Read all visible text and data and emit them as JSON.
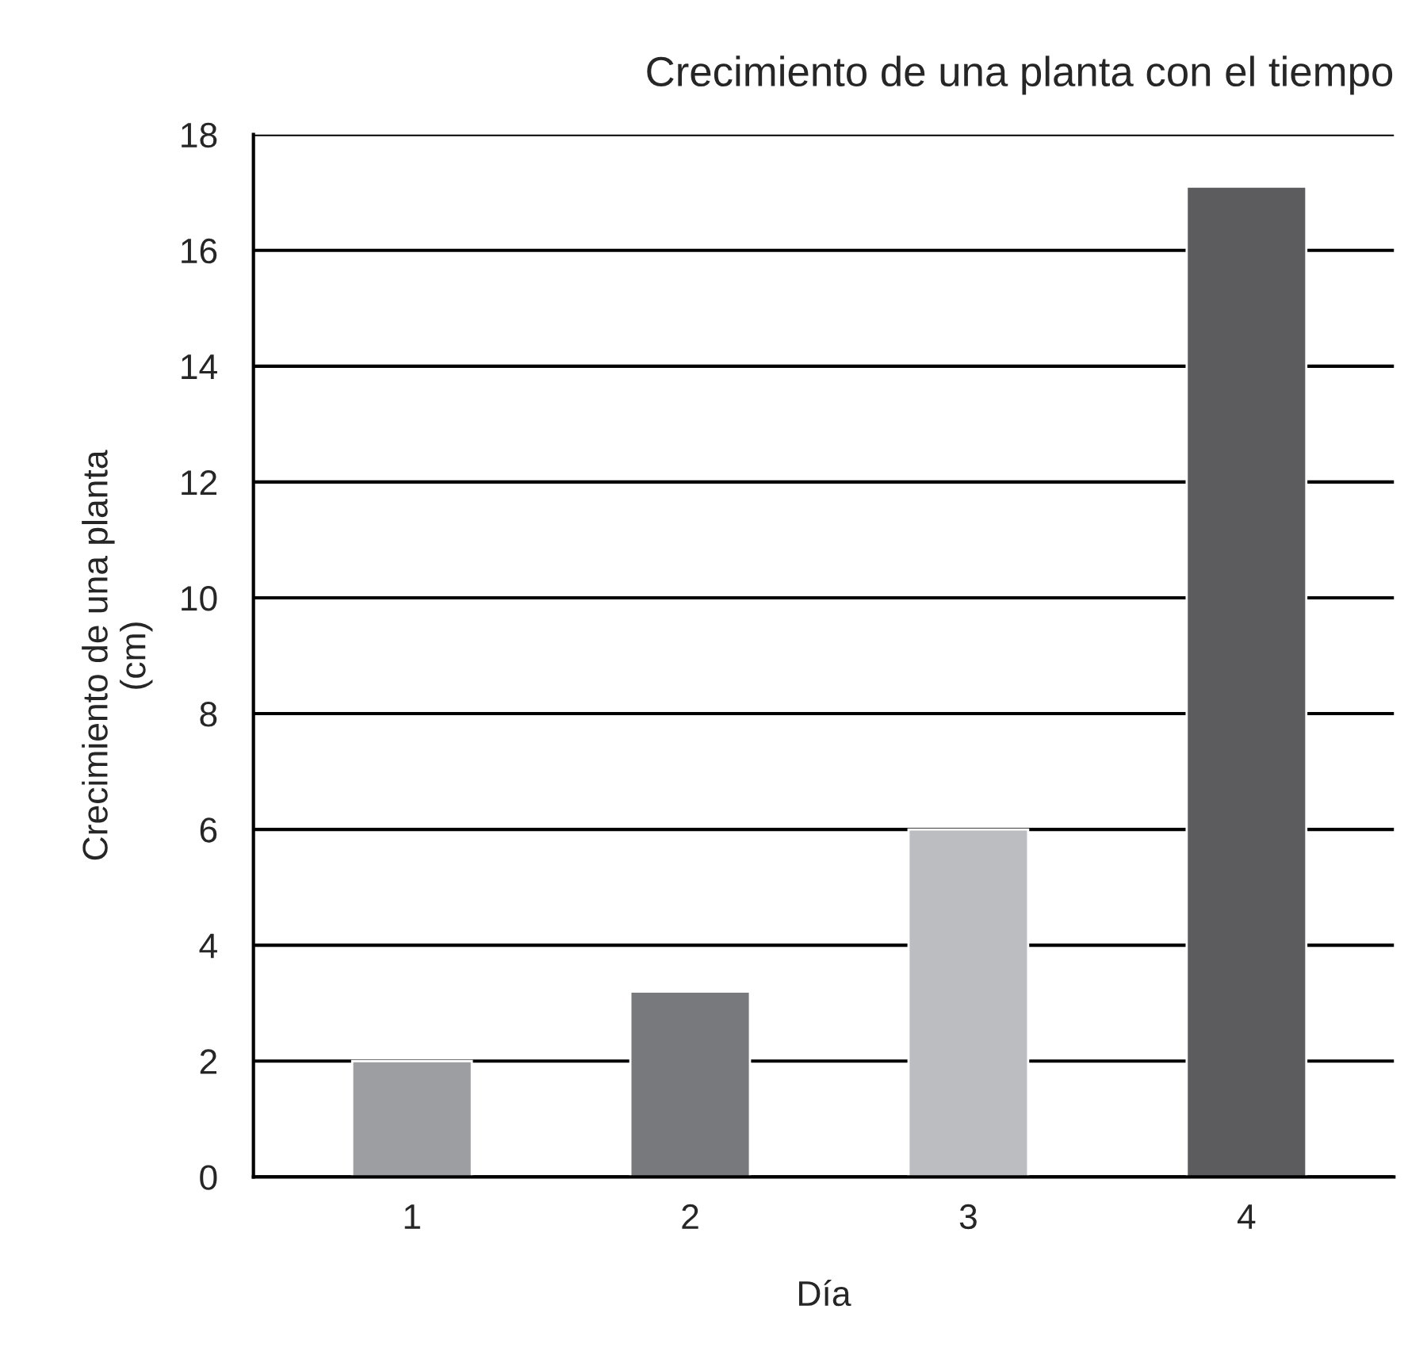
{
  "chart_data": {
    "type": "bar",
    "title": "Crecimiento de una planta con el tiempo",
    "xlabel": "Día",
    "ylabel": "Crecimiento de una planta\n(cm)",
    "categories": [
      "1",
      "2",
      "3",
      "4"
    ],
    "values": [
      2,
      3.2,
      6,
      17.1
    ],
    "colors": [
      "#9d9ea1",
      "#78797c",
      "#bcbdc0",
      "#5c5c5e"
    ],
    "ylim": [
      0,
      18
    ],
    "yticks": [
      0,
      2,
      4,
      6,
      8,
      10,
      12,
      14,
      16,
      18
    ],
    "grid": "y",
    "legend": false
  }
}
